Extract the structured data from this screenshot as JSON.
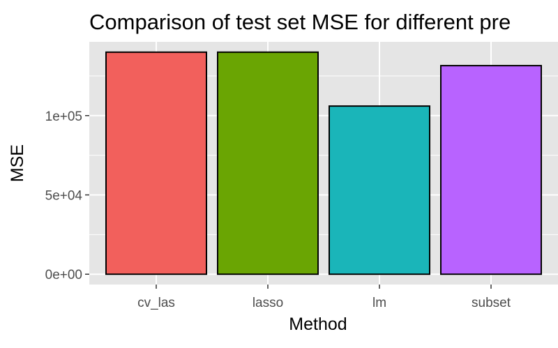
{
  "chart_data": {
    "type": "bar",
    "title": "Comparison of test set MSE for different pre",
    "xlabel": "Method",
    "ylabel": "MSE",
    "categories": [
      "cv_las",
      "lasso",
      "lm",
      "subset"
    ],
    "values": [
      140000,
      140000,
      106000,
      131500
    ],
    "ylim": [
      -6500,
      146500
    ],
    "yticks": [
      0,
      50000,
      100000
    ],
    "ytick_labels": [
      "0e+00",
      "5e+04",
      "1e+05"
    ],
    "grid": true,
    "legend": "none",
    "colors": {
      "panel_background": "#e5e5e5",
      "grid": "#ffffff",
      "bar_outline": "#000000",
      "bars": [
        "#f2605c",
        "#6aa503",
        "#1ab5b9",
        "#b863ff"
      ]
    }
  }
}
